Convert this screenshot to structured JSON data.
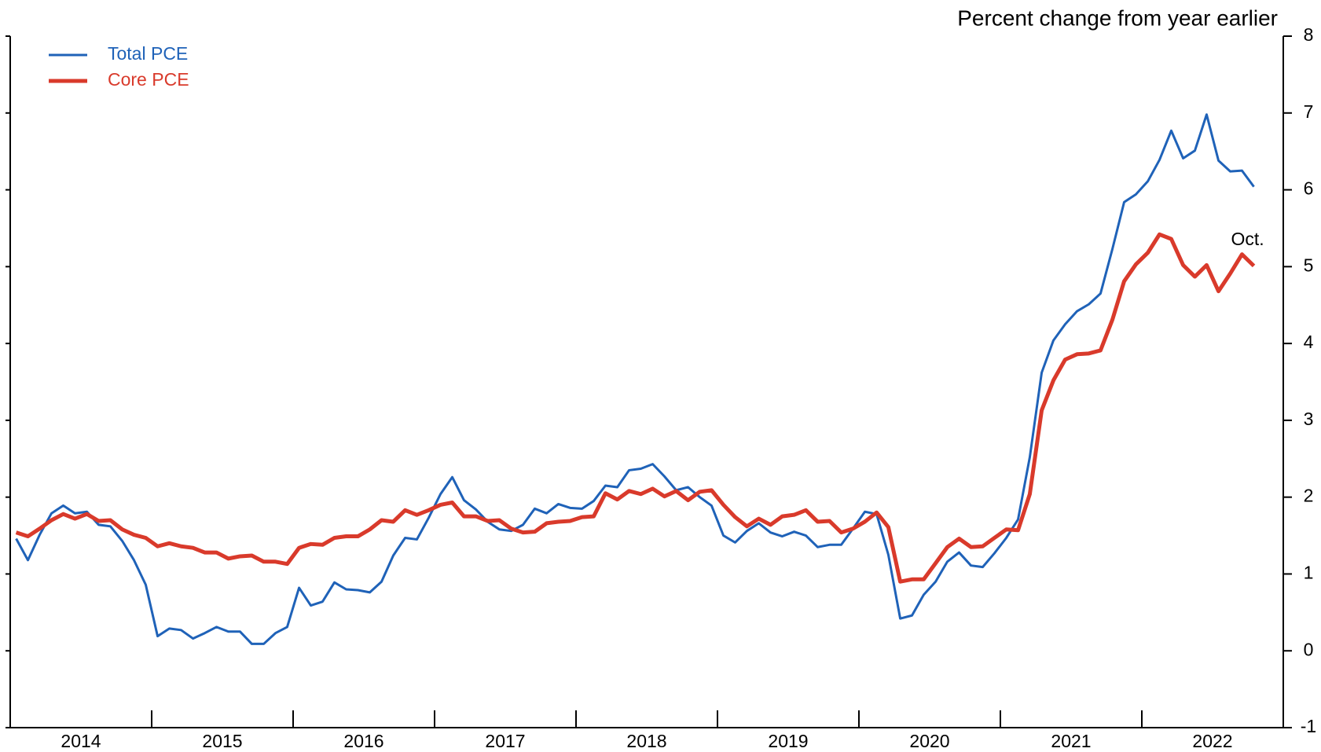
{
  "chart_data": {
    "type": "line",
    "y_axis_label": "Percent change from year earlier",
    "annotation": "Oct.",
    "legend": "upper left",
    "xlim": [
      2014,
      2023
    ],
    "xticks": [
      {
        "value": 2014.5,
        "label": "2014"
      },
      {
        "value": 2015.5,
        "label": "2015"
      },
      {
        "value": 2016.5,
        "label": "2016"
      },
      {
        "value": 2017.5,
        "label": "2017"
      },
      {
        "value": 2018.5,
        "label": "2018"
      },
      {
        "value": 2019.5,
        "label": "2019"
      },
      {
        "value": 2020.5,
        "label": "2020"
      },
      {
        "value": 2021.5,
        "label": "2021"
      },
      {
        "value": 2022.5,
        "label": "2022"
      }
    ],
    "xminorticks": [
      2015,
      2016,
      2017,
      2018,
      2019,
      2020,
      2021,
      2022
    ],
    "ylim": [
      -1,
      8
    ],
    "yticks": [
      -1,
      0,
      1,
      2,
      3,
      4,
      5,
      6,
      7,
      8
    ],
    "x": [
      2014.042,
      2014.125,
      2014.208,
      2014.292,
      2014.375,
      2014.458,
      2014.542,
      2014.625,
      2014.708,
      2014.792,
      2014.875,
      2014.958,
      2015.042,
      2015.125,
      2015.208,
      2015.292,
      2015.375,
      2015.458,
      2015.542,
      2015.625,
      2015.708,
      2015.792,
      2015.875,
      2015.958,
      2016.042,
      2016.125,
      2016.208,
      2016.292,
      2016.375,
      2016.458,
      2016.542,
      2016.625,
      2016.708,
      2016.792,
      2016.875,
      2016.958,
      2017.042,
      2017.125,
      2017.208,
      2017.292,
      2017.375,
      2017.458,
      2017.542,
      2017.625,
      2017.708,
      2017.792,
      2017.875,
      2017.958,
      2018.042,
      2018.125,
      2018.208,
      2018.292,
      2018.375,
      2018.458,
      2018.542,
      2018.625,
      2018.708,
      2018.792,
      2018.875,
      2018.958,
      2019.042,
      2019.125,
      2019.208,
      2019.292,
      2019.375,
      2019.458,
      2019.542,
      2019.625,
      2019.708,
      2019.792,
      2019.875,
      2019.958,
      2020.042,
      2020.125,
      2020.208,
      2020.292,
      2020.375,
      2020.458,
      2020.542,
      2020.625,
      2020.708,
      2020.792,
      2020.875,
      2020.958,
      2021.042,
      2021.125,
      2021.208,
      2021.292,
      2021.375,
      2021.458,
      2021.542,
      2021.625,
      2021.708,
      2021.792,
      2021.875,
      2021.958,
      2022.042,
      2022.125,
      2022.208,
      2022.292,
      2022.375,
      2022.458,
      2022.542,
      2022.625,
      2022.708,
      2022.792
    ],
    "series": [
      {
        "name": "Total PCE",
        "color": "#1f62b8",
        "width": 3,
        "values": [
          1.46,
          1.18,
          1.51,
          1.79,
          1.89,
          1.79,
          1.81,
          1.64,
          1.62,
          1.43,
          1.18,
          0.86,
          0.19,
          0.29,
          0.27,
          0.16,
          0.23,
          0.31,
          0.25,
          0.25,
          0.09,
          0.09,
          0.23,
          0.31,
          0.82,
          0.59,
          0.64,
          0.89,
          0.8,
          0.79,
          0.76,
          0.9,
          1.24,
          1.47,
          1.45,
          1.73,
          2.04,
          2.26,
          1.96,
          1.84,
          1.68,
          1.58,
          1.56,
          1.64,
          1.85,
          1.79,
          1.91,
          1.86,
          1.85,
          1.95,
          2.15,
          2.13,
          2.35,
          2.37,
          2.43,
          2.27,
          2.09,
          2.13,
          2.0,
          1.89,
          1.5,
          1.41,
          1.56,
          1.66,
          1.54,
          1.49,
          1.55,
          1.5,
          1.35,
          1.38,
          1.38,
          1.59,
          1.81,
          1.78,
          1.25,
          0.42,
          0.46,
          0.73,
          0.9,
          1.16,
          1.28,
          1.11,
          1.09,
          1.27,
          1.47,
          1.71,
          2.52,
          3.62,
          4.04,
          4.25,
          4.42,
          4.51,
          4.65,
          5.23,
          5.84,
          5.94,
          6.11,
          6.39,
          6.77,
          6.41,
          6.51,
          6.98,
          6.38,
          6.24,
          6.25,
          6.04
        ]
      },
      {
        "name": "Core PCE",
        "color": "#d93a2b",
        "width": 5,
        "values": [
          1.54,
          1.49,
          1.59,
          1.7,
          1.78,
          1.72,
          1.78,
          1.69,
          1.7,
          1.58,
          1.51,
          1.47,
          1.36,
          1.4,
          1.36,
          1.34,
          1.28,
          1.28,
          1.2,
          1.23,
          1.24,
          1.16,
          1.16,
          1.13,
          1.34,
          1.39,
          1.38,
          1.47,
          1.49,
          1.49,
          1.58,
          1.7,
          1.68,
          1.83,
          1.77,
          1.83,
          1.9,
          1.93,
          1.75,
          1.75,
          1.69,
          1.7,
          1.59,
          1.54,
          1.55,
          1.66,
          1.68,
          1.69,
          1.74,
          1.75,
          2.05,
          1.97,
          2.08,
          2.04,
          2.11,
          2.01,
          2.08,
          1.96,
          2.07,
          2.09,
          1.9,
          1.74,
          1.62,
          1.72,
          1.64,
          1.75,
          1.77,
          1.83,
          1.68,
          1.69,
          1.54,
          1.59,
          1.68,
          1.8,
          1.61,
          0.9,
          0.93,
          0.93,
          1.14,
          1.35,
          1.46,
          1.35,
          1.36,
          1.47,
          1.58,
          1.57,
          2.04,
          3.13,
          3.52,
          3.79,
          3.86,
          3.87,
          3.91,
          4.31,
          4.81,
          5.03,
          5.18,
          5.42,
          5.36,
          5.02,
          4.87,
          5.02,
          4.68,
          4.91,
          5.16,
          5.01
        ]
      }
    ]
  }
}
